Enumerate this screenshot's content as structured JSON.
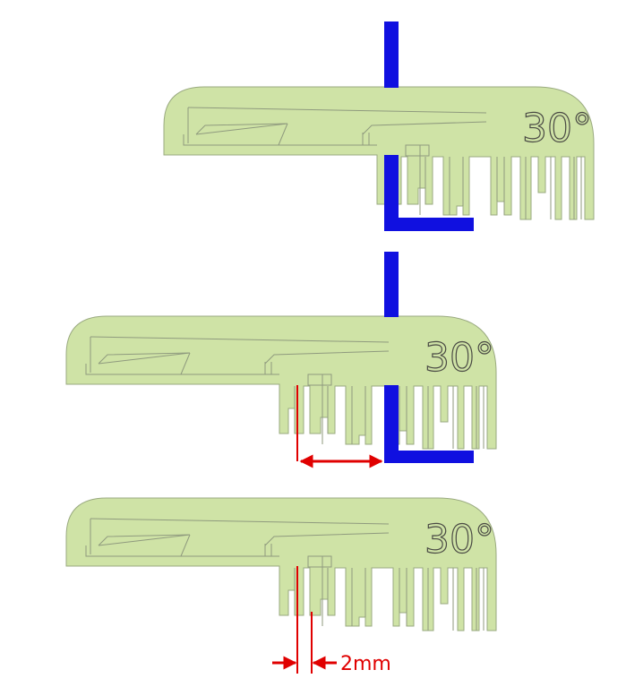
{
  "gauges": [
    {
      "id": "top",
      "label": "30°"
    },
    {
      "id": "middle",
      "label": "30°"
    },
    {
      "id": "bottom",
      "label": "30°"
    }
  ],
  "dimension": {
    "label": "2mm"
  },
  "colors": {
    "part": "#cfe3a6",
    "reference": "#1010e0",
    "dimension": "#e00000"
  }
}
